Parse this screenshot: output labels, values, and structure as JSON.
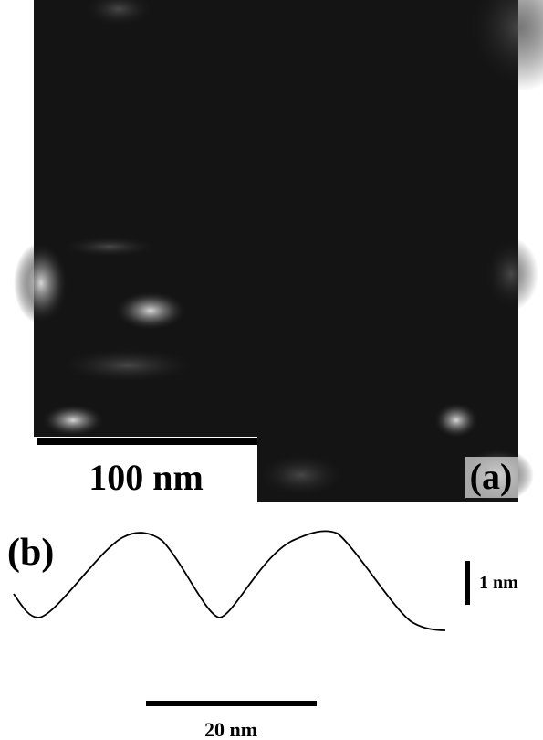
{
  "panel_a": {
    "scale_label": "100 nm",
    "label": "(a)"
  },
  "panel_b": {
    "label": "(b)",
    "height_scale_label": "1 nm",
    "length_scale_label": "20 nm"
  }
}
